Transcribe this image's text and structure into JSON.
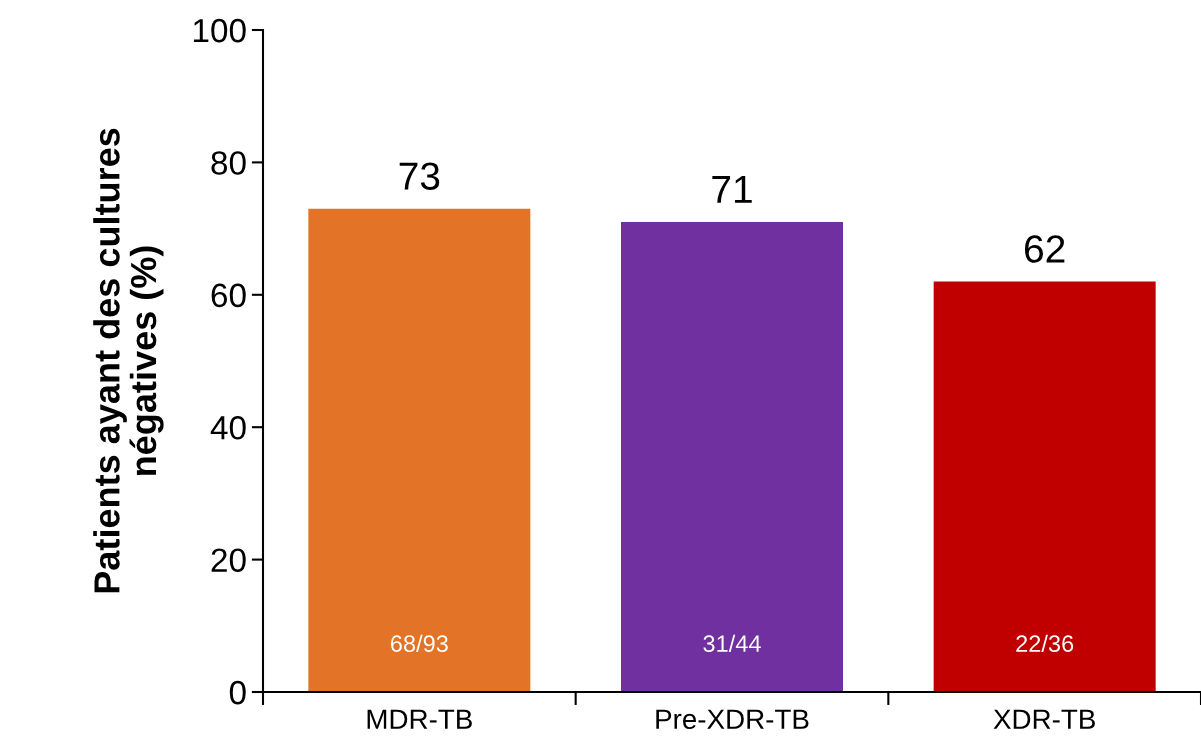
{
  "chart_data": {
    "type": "bar",
    "ylabel": "Patients ayant des cultures\nnégatives (%)",
    "categories": [
      "MDR-TB",
      "Pre-XDR-TB",
      "XDR-TB"
    ],
    "values": [
      73,
      71,
      62
    ],
    "colors": [
      "#e37326",
      "#7030a0",
      "#c00000"
    ],
    "ylim": [
      0,
      100
    ],
    "yticks": [
      0,
      20,
      40,
      60,
      80,
      100
    ],
    "grid": false,
    "data_labels": true,
    "annotations": [
      "68/93",
      "31/44",
      "22/36"
    ]
  }
}
